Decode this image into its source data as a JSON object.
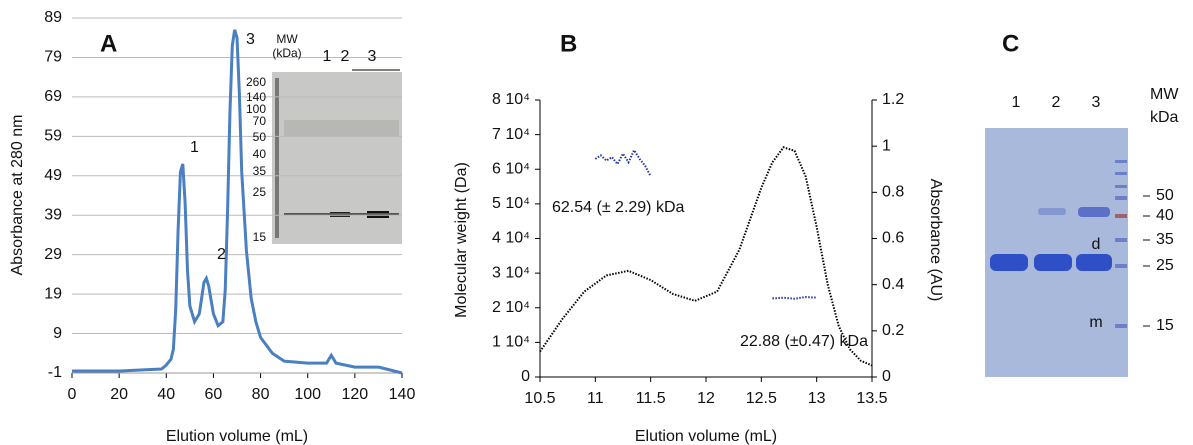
{
  "chart_data": [
    {
      "type": "line",
      "panel_label": "A",
      "xlabel": "Elution volume (mL)",
      "ylabel": "Absorbance at 280 nm",
      "xlim": [
        0,
        140
      ],
      "xticks": [
        0,
        20,
        40,
        60,
        80,
        100,
        120,
        140
      ],
      "ylim": [
        -1,
        89
      ],
      "yticks": [
        -1,
        9,
        19,
        29,
        39,
        49,
        59,
        69,
        79,
        89
      ],
      "grid": true,
      "series": [
        {
          "color": "#4a7fc1",
          "x": [
            0,
            20,
            38,
            40,
            42,
            43,
            44,
            45,
            46,
            47,
            48,
            49,
            50,
            52,
            54,
            55,
            56,
            57,
            58,
            60,
            62,
            64,
            65,
            66,
            67,
            68,
            69,
            70,
            71,
            72,
            74,
            76,
            78,
            80,
            85,
            90,
            100,
            108,
            110,
            112,
            120,
            130,
            140
          ],
          "values": [
            -0.5,
            -0.5,
            0,
            1,
            2.5,
            5,
            15,
            35,
            50,
            52,
            42,
            25,
            16,
            12,
            14,
            18,
            22,
            23,
            21,
            14,
            11,
            12,
            20,
            40,
            65,
            82,
            86,
            84,
            70,
            50,
            30,
            18,
            12,
            8,
            4,
            2,
            1.5,
            1.5,
            3.5,
            1.5,
            0.5,
            0.5,
            -1
          ]
        }
      ],
      "annotations": [
        "1",
        "2",
        "3"
      ],
      "inset": {
        "mw_title": [
          "MW",
          "(kDa)"
        ],
        "lanes": [
          "1",
          "2",
          "3"
        ],
        "markers": [
          260,
          140,
          100,
          70,
          50,
          40,
          35,
          25,
          15
        ]
      }
    },
    {
      "type": "line",
      "panel_label": "B",
      "xlabel": "Elution volume (mL)",
      "ylabel": "Molecular weight (Da)",
      "y2label": "Absorbance (AU)",
      "xlim": [
        10.5,
        13.5
      ],
      "xticks": [
        10.5,
        11,
        11.5,
        12,
        12.5,
        13,
        13.5
      ],
      "ylim": [
        0,
        80000
      ],
      "yticks": [
        0,
        {
          "value": 10000,
          "label": "1 10⁴"
        },
        {
          "value": 20000,
          "label": "2 10⁴"
        },
        {
          "value": 30000,
          "label": "3 10⁴"
        },
        {
          "value": 40000,
          "label": "4 10⁴"
        },
        {
          "value": 50000,
          "label": "5 10⁴"
        },
        {
          "value": 60000,
          "label": "6 10⁴"
        },
        {
          "value": 70000,
          "label": "7 10⁴"
        },
        {
          "value": 80000,
          "label": "8 10⁴"
        }
      ],
      "y2lim": [
        0,
        1.2
      ],
      "y2ticks": [
        0,
        0.2,
        0.4,
        0.6,
        0.8,
        1,
        1.2
      ],
      "grid": false,
      "series": [
        {
          "color": "#000000",
          "axis": "y2",
          "dotted": true,
          "x": [
            10.5,
            10.7,
            10.9,
            11.1,
            11.3,
            11.5,
            11.7,
            11.9,
            12.1,
            12.3,
            12.5,
            12.6,
            12.7,
            12.8,
            12.9,
            13.0,
            13.1,
            13.2,
            13.3,
            13.4,
            13.5
          ],
          "values": [
            0.11,
            0.25,
            0.37,
            0.44,
            0.46,
            0.42,
            0.36,
            0.33,
            0.37,
            0.55,
            0.82,
            0.93,
            0.995,
            0.98,
            0.87,
            0.65,
            0.4,
            0.22,
            0.12,
            0.07,
            0.05
          ]
        },
        {
          "color": "#2233aa",
          "dotted": true,
          "x": [
            11.0,
            11.05,
            11.1,
            11.15,
            11.2,
            11.25,
            11.3,
            11.35,
            11.4,
            11.45,
            11.5
          ],
          "values": [
            63000,
            64000,
            62500,
            63500,
            61500,
            64500,
            62000,
            65500,
            63000,
            61000,
            58000
          ]
        },
        {
          "color": "#2233aa",
          "dotted": true,
          "x": [
            12.6,
            12.7,
            12.8,
            12.9,
            13.0
          ],
          "values": [
            22700,
            22900,
            22600,
            23100,
            22900
          ]
        }
      ],
      "annotations": [
        "62.54 (± 2.29) kDa",
        "22.88 (±0.47) kDa"
      ]
    }
  ],
  "gel_c": {
    "panel_label": "C",
    "lanes": [
      "1",
      "2",
      "3"
    ],
    "mw_title": [
      "MW",
      "kDa"
    ],
    "markers": [
      50,
      40,
      35,
      25,
      15
    ],
    "band_labels": [
      "d",
      "m"
    ]
  }
}
